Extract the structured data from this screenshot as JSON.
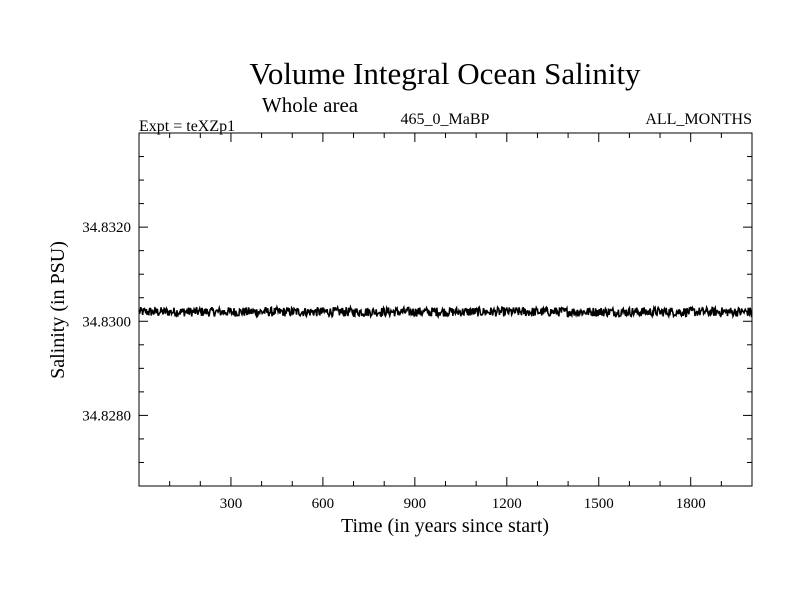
{
  "chart_data": {
    "type": "line",
    "title": "Volume Integral Ocean Salinity",
    "subtitle": "Whole area",
    "header_left": "Expt = teXZp1",
    "header_center": "465_0_MaBP",
    "header_right": "ALL_MONTHS",
    "xlabel": "Time (in years since start)",
    "ylabel": "Salinity (in PSU)",
    "xlim": [
      0,
      2000
    ],
    "ylim": [
      34.8265,
      34.834
    ],
    "x_ticks": [
      300,
      600,
      900,
      1200,
      1500,
      1800
    ],
    "x_tick_labels": [
      "300",
      "600",
      "900",
      "1200",
      "1500",
      "1800"
    ],
    "y_ticks": [
      34.828,
      34.83,
      34.832
    ],
    "y_tick_labels": [
      "34.8280",
      "34.8300",
      "34.8320"
    ],
    "grid": false,
    "series": [
      {
        "mean": 34.8302,
        "noise_amplitude": 0.0001,
        "x_start": 0,
        "x_end": 2000,
        "color": "#000000"
      }
    ]
  }
}
